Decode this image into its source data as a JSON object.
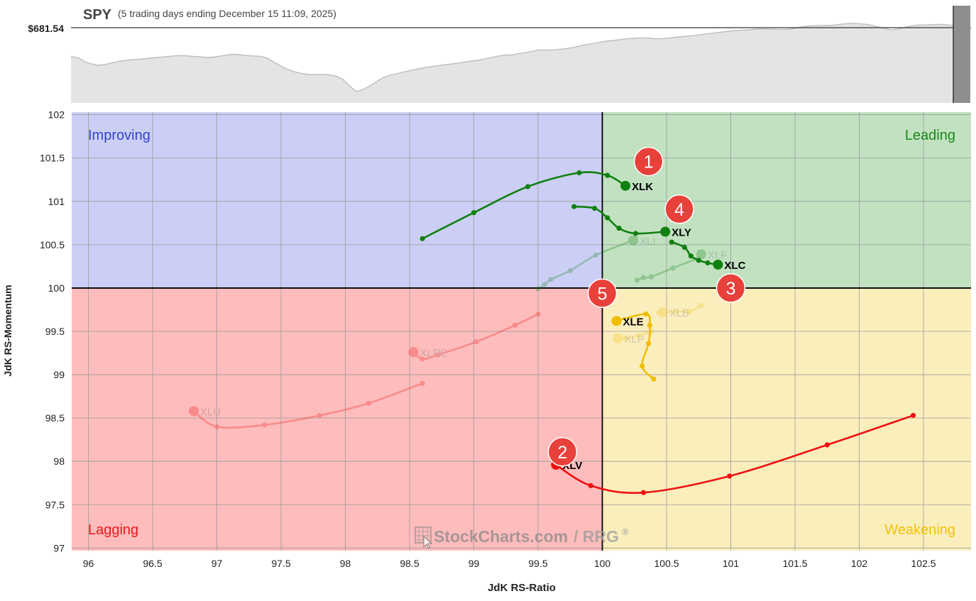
{
  "header": {
    "symbol": "SPY",
    "subtitle": "(5 trading days ending December 15 11:09, 2025)",
    "price": "$681.54"
  },
  "quadrants": {
    "improving": "Improving",
    "leading": "Leading",
    "lagging": "Lagging",
    "weakening": "Weakening"
  },
  "colors": {
    "improving_bg": "#cbcff5",
    "leading_bg": "#c1e1c1",
    "lagging_bg": "#ffbcbc",
    "weakening_bg": "#fbeebd",
    "improving_text": "#3344cc",
    "leading_text": "#1a8a1a",
    "lagging_text": "#e81818",
    "weakening_text": "#f2c200",
    "green": "#108010",
    "red": "#ee1111",
    "yellow": "#f0bd00",
    "marker": "#e8403a"
  },
  "watermark": {
    "brand": "StockCharts.com",
    "product": "/ RRG",
    "reg": "®"
  },
  "chart_data": {
    "type": "scatter",
    "xlabel": "JdK RS-Ratio",
    "ylabel": "JdK RS-Momentum",
    "xlim": [
      95.87,
      102.87
    ],
    "ylim": [
      96.97,
      102.03
    ],
    "xticks": [
      {
        "v": 96,
        "label": "96"
      },
      {
        "v": 96.5,
        "label": "96.5"
      },
      {
        "v": 97,
        "label": "97"
      },
      {
        "v": 97.5,
        "label": "97.5"
      },
      {
        "v": 98,
        "label": "98"
      },
      {
        "v": 98.5,
        "label": "98.5"
      },
      {
        "v": 99,
        "label": "99"
      },
      {
        "v": 99.5,
        "label": "99.5"
      },
      {
        "v": 100,
        "label": "100"
      },
      {
        "v": 100.5,
        "label": "100.5"
      },
      {
        "v": 101,
        "label": "101"
      },
      {
        "v": 101.5,
        "label": "101.5"
      },
      {
        "v": 102,
        "label": "102"
      },
      {
        "v": 102.5,
        "label": "102.5"
      }
    ],
    "yticks": [
      {
        "v": 97,
        "label": "97"
      },
      {
        "v": 97.5,
        "label": "97.5"
      },
      {
        "v": 98,
        "label": "98"
      },
      {
        "v": 98.5,
        "label": "98.5"
      },
      {
        "v": 99,
        "label": "99"
      },
      {
        "v": 99.5,
        "label": "99.5"
      },
      {
        "v": 100,
        "label": "100"
      },
      {
        "v": 100.5,
        "label": "100.5"
      },
      {
        "v": 101,
        "label": "101"
      },
      {
        "v": 101.5,
        "label": "101.5"
      },
      {
        "v": 102,
        "label": "102"
      }
    ],
    "center": [
      100,
      100
    ],
    "series": [
      {
        "name": "XLK",
        "color": "green",
        "faded": false,
        "points": [
          [
            98.6,
            100.57
          ],
          [
            99.0,
            100.87
          ],
          [
            99.42,
            101.17
          ],
          [
            99.82,
            101.33
          ],
          [
            100.04,
            101.3
          ],
          [
            100.18,
            101.18
          ]
        ]
      },
      {
        "name": "XLY",
        "color": "green",
        "faded": false,
        "points": [
          [
            99.78,
            100.94
          ],
          [
            99.94,
            100.92
          ],
          [
            100.04,
            100.81
          ],
          [
            100.13,
            100.69
          ],
          [
            100.26,
            100.63
          ],
          [
            100.49,
            100.65
          ]
        ]
      },
      {
        "name": "XLC",
        "color": "green",
        "faded": false,
        "points": [
          [
            100.54,
            100.53
          ],
          [
            100.64,
            100.47
          ],
          [
            100.69,
            100.37
          ],
          [
            100.75,
            100.32
          ],
          [
            100.82,
            100.29
          ],
          [
            100.9,
            100.27
          ]
        ]
      },
      {
        "name": "XLE",
        "color": "yellow",
        "faded": false,
        "points": [
          [
            100.4,
            98.95
          ],
          [
            100.31,
            99.1
          ],
          [
            100.36,
            99.36
          ],
          [
            100.37,
            99.57
          ],
          [
            100.34,
            99.7
          ],
          [
            100.11,
            99.62
          ]
        ]
      },
      {
        "name": "XLV",
        "color": "red",
        "faded": false,
        "points": [
          [
            102.42,
            98.53
          ],
          [
            101.75,
            98.19
          ],
          [
            100.99,
            97.83
          ],
          [
            100.32,
            97.64
          ],
          [
            99.91,
            97.72
          ],
          [
            99.64,
            97.96
          ]
        ]
      },
      {
        "name": "XLI",
        "color": "green",
        "faded": true,
        "points": [
          [
            99.5,
            99.99
          ],
          [
            99.55,
            100.04
          ],
          [
            99.6,
            100.1
          ],
          [
            99.75,
            100.2
          ],
          [
            99.95,
            100.38
          ],
          [
            100.24,
            100.55
          ]
        ]
      },
      {
        "name": "XLF",
        "color": "green",
        "faded": true,
        "points": [
          [
            100.27,
            100.09
          ],
          [
            100.32,
            100.12
          ],
          [
            100.38,
            100.13
          ],
          [
            100.55,
            100.23
          ],
          [
            100.75,
            100.35
          ],
          [
            100.77,
            100.39
          ]
        ]
      },
      {
        "name": "XLB",
        "color": "yellow",
        "faded": true,
        "points": [
          [
            100.77,
            99.8
          ],
          [
            100.68,
            99.73
          ],
          [
            100.58,
            99.73
          ],
          [
            100.47,
            99.72
          ],
          [
            100.44,
            99.72
          ],
          [
            100.47,
            99.72
          ]
        ]
      },
      {
        "name": "XLP",
        "color": "yellow",
        "faded": true,
        "points": [
          [
            100.38,
            99.5
          ],
          [
            100.28,
            99.45
          ],
          [
            100.18,
            99.42
          ],
          [
            100.12,
            99.42
          ],
          [
            100.11,
            99.42
          ],
          [
            100.12,
            99.42
          ]
        ]
      },
      {
        "name": "XLRE",
        "color": "red",
        "faded": true,
        "points": [
          [
            99.5,
            99.7
          ],
          [
            99.32,
            99.57
          ],
          [
            99.02,
            99.38
          ],
          [
            98.72,
            99.23
          ],
          [
            98.6,
            99.18
          ],
          [
            98.53,
            99.26
          ]
        ]
      },
      {
        "name": "XLU",
        "color": "red",
        "faded": true,
        "points": [
          [
            98.6,
            98.9
          ],
          [
            98.18,
            98.67
          ],
          [
            97.8,
            98.53
          ],
          [
            97.37,
            98.42
          ],
          [
            97.0,
            98.4
          ],
          [
            96.82,
            98.58
          ]
        ]
      }
    ],
    "markers": [
      {
        "label": "1",
        "x": 100.36,
        "y": 101.46
      },
      {
        "label": "2",
        "x": 99.69,
        "y": 98.11
      },
      {
        "label": "3",
        "x": 101.0,
        "y": 100.0
      },
      {
        "label": "4",
        "x": 100.6,
        "y": 100.91
      },
      {
        "label": "5",
        "x": 100.0,
        "y": 99.94
      }
    ],
    "spy_line": {
      "last_value": "$681.54",
      "values": [
        664.8,
        664.2,
        662.0,
        660.9,
        660.1,
        660.5,
        661.4,
        662.2,
        662.8,
        663.1,
        663.3,
        663.7,
        664.1,
        664.4,
        664.7,
        665.1,
        665.3,
        665.2,
        664.9,
        664.7,
        664.3,
        664.5,
        665.1,
        665.6,
        666.0,
        665.7,
        665.3,
        665.1,
        664.9,
        663.8,
        661.6,
        659.6,
        657.8,
        656.6,
        655.7,
        655.2,
        655.2,
        655.3,
        655.1,
        654.4,
        652.7,
        649.3,
        646.1,
        647.1,
        649.0,
        651.3,
        653.5,
        654.8,
        655.6,
        656.5,
        657.3,
        658.1,
        658.8,
        659.4,
        659.9,
        660.3,
        660.8,
        661.2,
        661.8,
        662.4,
        662.8,
        663.6,
        664.3,
        665.1,
        665.6,
        665.7,
        666.4,
        666.9,
        667.7,
        668.3,
        668.2,
        668.3,
        668.6,
        669.0,
        669.7,
        670.5,
        671.2,
        671.8,
        672.5,
        673.1,
        673.4,
        673.9,
        674.3,
        674.5,
        674.8,
        674.7,
        674.4,
        674.3,
        674.6,
        675.1,
        675.5,
        675.8,
        676.1,
        676.6,
        677.1,
        677.5,
        677.9,
        678.4,
        678.7,
        678.9,
        679.1,
        679.5,
        679.6,
        679.4,
        679.3,
        679.2,
        679.5,
        680.2,
        680.8,
        681.2,
        681.3,
        681.5,
        681.4,
        681.9,
        682.3,
        682.5,
        682.4,
        682.1,
        681.5,
        680.6,
        679.7,
        679.0,
        679.6,
        680.5,
        681.3,
        681.7,
        681.6,
        681.9,
        682.0,
        681.8,
        681.5
      ]
    }
  }
}
